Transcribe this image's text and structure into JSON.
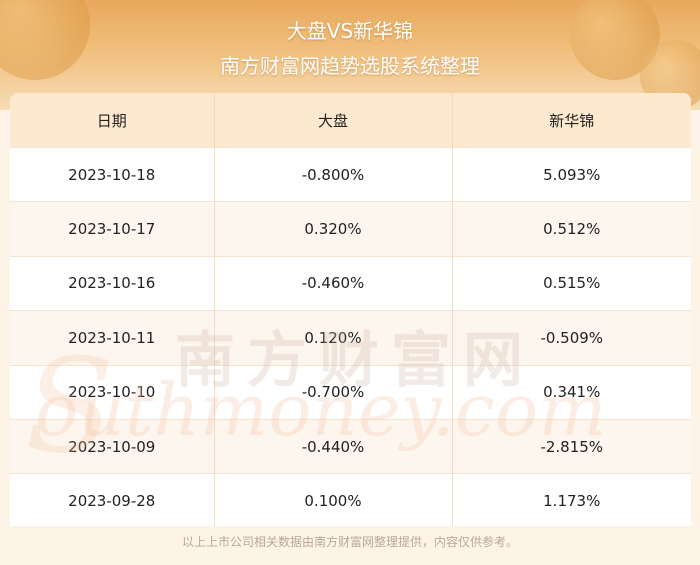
{
  "header": {
    "title": "大盘VS新华锦",
    "subtitle": "南方财富网趋势选股系统整理"
  },
  "table": {
    "columns": [
      "日期",
      "大盘",
      "新华锦"
    ],
    "rows": [
      [
        "2023-10-18",
        "-0.800%",
        "5.093%"
      ],
      [
        "2023-10-17",
        "0.320%",
        "0.512%"
      ],
      [
        "2023-10-16",
        "-0.460%",
        "0.515%"
      ],
      [
        "2023-10-11",
        "0.120%",
        "-0.509%"
      ],
      [
        "2023-10-10",
        "-0.700%",
        "0.341%"
      ],
      [
        "2023-10-09",
        "-0.440%",
        "-2.815%"
      ],
      [
        "2023-09-28",
        "0.100%",
        "1.173%"
      ]
    ]
  },
  "watermark": {
    "cn": "南方财富网",
    "en": "outhmoney.com",
    "initial": "S"
  },
  "footer": {
    "note": "以上上市公司相关数据由南方财富网整理提供，内容仅供参考。"
  }
}
